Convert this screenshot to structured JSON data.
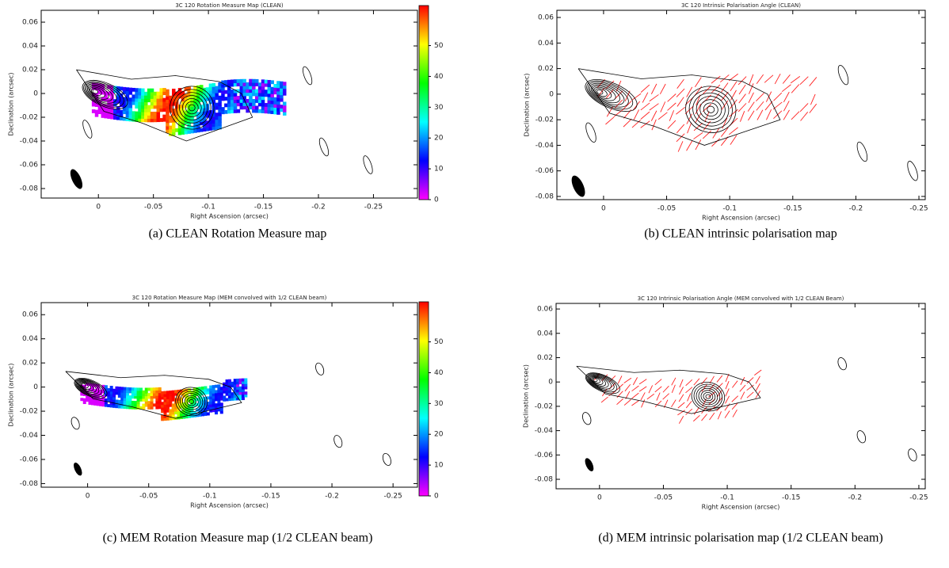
{
  "chart_data": [
    {
      "type": "heatmap",
      "title": "3C 120 Rotation Measure Map (CLEAN)",
      "x_label": "Right Ascension (arcsec)",
      "y_label": "Declination (arcsec)",
      "xlim": [
        0.052,
        -0.29
      ],
      "ylim": [
        -0.088,
        0.07
      ],
      "xticks": [
        0,
        -0.05,
        -0.1,
        -0.15,
        -0.2,
        -0.25
      ],
      "yticks": [
        -0.08,
        -0.06,
        -0.04,
        -0.02,
        0,
        0.02,
        0.04,
        0.06
      ],
      "colorbar": {
        "lim": [
          0,
          63
        ],
        "ticks": [
          0,
          10,
          20,
          30,
          40,
          50
        ],
        "colors": [
          "#ff00ff",
          "#0000ff",
          "#00ffff",
          "#00ff00",
          "#ffff00",
          "#ff0000"
        ]
      },
      "caption": "(a)  CLEAN Rotation Measure map"
    },
    {
      "type": "quiver",
      "title": "3C 120 Intrinsic Polarisation Angle (CLEAN)",
      "x_label": "Right Ascension (arcsec)",
      "y_label": "Declination (arcsec)",
      "xlim": [
        0.037,
        -0.255
      ],
      "ylim": [
        -0.0825,
        0.0656
      ],
      "xticks": [
        0,
        -0.05,
        -0.1,
        -0.15,
        -0.2,
        -0.25
      ],
      "yticks": [
        -0.08,
        -0.06,
        -0.04,
        -0.02,
        0,
        0.02,
        0.04,
        0.06
      ],
      "vector_color": "#ff2020",
      "caption": "(b)  CLEAN intrinsic polarisation map"
    },
    {
      "type": "heatmap",
      "title": "3C 120 Rotation Measure Map (MEM convolved with 1/2 CLEAN beam)",
      "x_label": "Right Ascension (arcsec)",
      "y_label": "Declination (arcsec)",
      "xlim": [
        0.038,
        -0.27
      ],
      "ylim": [
        -0.083,
        0.07
      ],
      "xticks": [
        0,
        -0.05,
        -0.1,
        -0.15,
        -0.2,
        -0.25
      ],
      "yticks": [
        -0.08,
        -0.06,
        -0.04,
        -0.02,
        0,
        0.02,
        0.04,
        0.06
      ],
      "colorbar": {
        "lim": [
          0,
          63
        ],
        "ticks": [
          0,
          10,
          20,
          30,
          40,
          50
        ],
        "colors": [
          "#ff00ff",
          "#0000ff",
          "#00ffff",
          "#00ff00",
          "#ffff00",
          "#ff0000"
        ]
      },
      "caption": "(c)  MEM Rotation Measure map (1/2 CLEAN beam)"
    },
    {
      "type": "quiver",
      "title": "3C 120 Intrinsic Polarisation Angle (MEM convolved with 1/2 CLEAN Beam)",
      "x_label": "Right Ascension (arcsec)",
      "y_label": "Declination (arcsec)",
      "xlim": [
        0.034,
        -0.255
      ],
      "ylim": [
        -0.0878,
        0.0646
      ],
      "xticks": [
        0,
        -0.05,
        -0.1,
        -0.15,
        -0.2,
        -0.25
      ],
      "yticks": [
        -0.08,
        -0.06,
        -0.04,
        -0.02,
        0,
        0.02,
        0.04,
        0.06
      ],
      "vector_color": "#ff2020",
      "caption": "(d)  MEM intrinsic polarisation map (1/2 CLEAN beam)"
    }
  ]
}
